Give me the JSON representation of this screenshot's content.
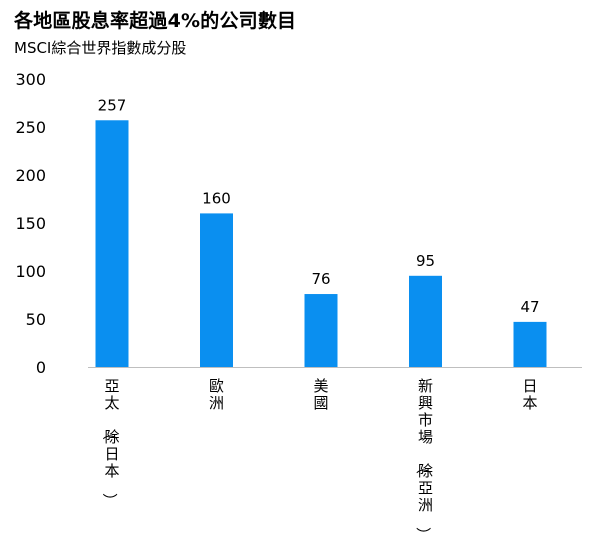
{
  "chart_data": {
    "type": "bar",
    "title": "各地區股息率超過4%的公司數目",
    "subtitle": "MSCI綜合世界指數成分股",
    "categories": [
      "亞太（除日本）",
      "歐洲",
      "美國",
      "新興市場（除亞洲）",
      "日本"
    ],
    "values": [
      257,
      160,
      76,
      95,
      47
    ],
    "data_labels": [
      "257",
      "160",
      "76",
      "95",
      "47"
    ],
    "ylim": [
      0,
      300
    ],
    "yticks": [
      0,
      50,
      100,
      150,
      200,
      250,
      300
    ],
    "ytick_labels": [
      "0",
      "50",
      "100",
      "150",
      "200",
      "250",
      "300"
    ],
    "bar_color": "#0a8ff0",
    "axis_color": "#bfbfbf",
    "grid": false,
    "legend": "none"
  }
}
